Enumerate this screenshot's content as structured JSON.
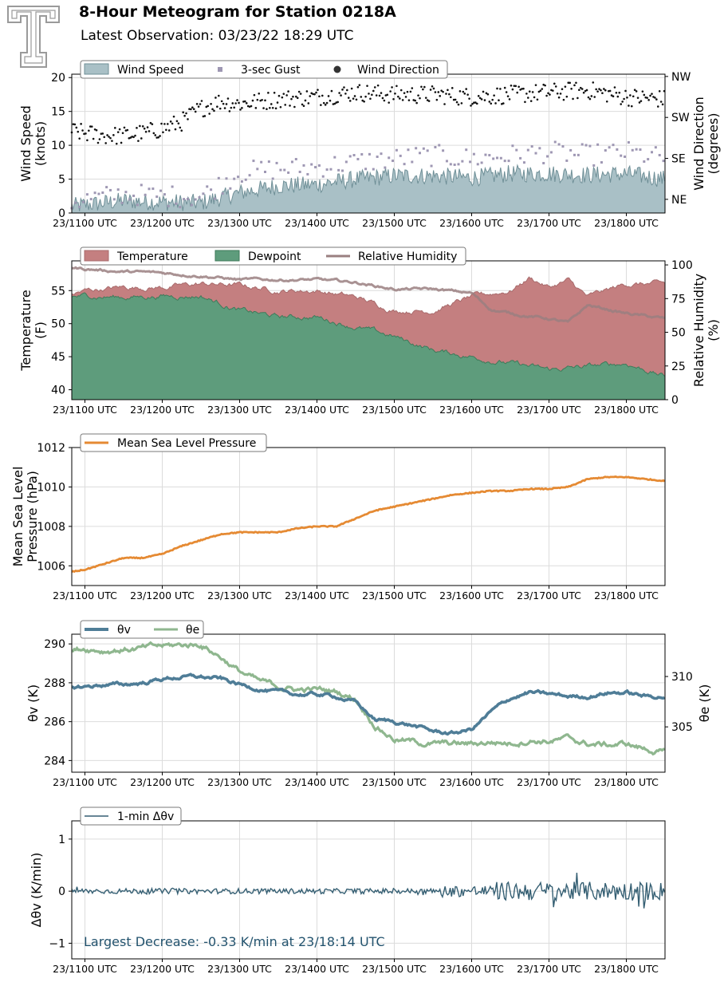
{
  "header": {
    "title": "8-Hour Meteogram for Station 0218A",
    "subtitle": "Latest Observation: 03/23/22 18:29 UTC"
  },
  "x_tick_labels": [
    "23/1100 UTC",
    "23/1200 UTC",
    "23/1300 UTC",
    "23/1400 UTC",
    "23/1500 UTC",
    "23/1600 UTC",
    "23/1700 UTC",
    "23/1800 UTC"
  ],
  "chart_data": [
    {
      "id": "wind",
      "type": "area",
      "ylabel": "Wind Speed\n(knots)",
      "ylabel_right": "Wind Direction\n(degrees)",
      "ylim": [
        0,
        20.5
      ],
      "yticks": [
        0,
        5,
        10,
        15,
        20
      ],
      "right_ticks": [
        "NE",
        "SE",
        "SW",
        "NW"
      ],
      "legend": [
        "Wind Speed",
        "3-sec Gust",
        "Wind Direction"
      ],
      "colors": {
        "speed_fill": "#a9c0c6",
        "speed_line": "#6f8f97",
        "gust": "#9e97b3",
        "direction": "#111111"
      },
      "xlim_hours": [
        10.83,
        18.5
      ],
      "series": [
        {
          "name": "Wind Speed",
          "x": [
            10.83,
            11.0,
            11.5,
            12.0,
            12.5,
            13.0,
            13.5,
            14.0,
            14.5,
            15.0,
            15.5,
            16.0,
            16.5,
            17.0,
            17.5,
            18.0,
            18.5
          ],
          "values": [
            1.0,
            1.2,
            1.8,
            1.6,
            1.5,
            3.0,
            4.0,
            4.2,
            5.0,
            5.5,
            5.5,
            5.2,
            5.8,
            5.8,
            5.6,
            5.8,
            5.0
          ]
        },
        {
          "name": "3-sec Gust",
          "x": [
            10.83,
            11.0,
            11.5,
            12.0,
            12.5,
            13.0,
            13.5,
            14.0,
            14.5,
            15.0,
            15.5,
            16.0,
            16.5,
            17.0,
            17.5,
            18.0,
            18.5
          ],
          "values": [
            1.6,
            2.0,
            2.8,
            2.5,
            2.4,
            6.0,
            6.5,
            6.8,
            7.5,
            8.0,
            8.5,
            8.0,
            8.5,
            9.0,
            8.5,
            9.0,
            8.0
          ]
        },
        {
          "name": "Wind Direction",
          "x": [
            10.83,
            11.0,
            11.25,
            11.5,
            11.75,
            12.0,
            12.25,
            12.5,
            12.75,
            13.0,
            13.5,
            14.0,
            14.5,
            15.0,
            15.5,
            16.0,
            16.5,
            17.0,
            17.5,
            18.0,
            18.5
          ],
          "values": [
            195,
            190,
            185,
            185,
            190,
            200,
            215,
            245,
            260,
            255,
            265,
            270,
            280,
            275,
            275,
            270,
            275,
            280,
            285,
            270,
            265
          ]
        }
      ]
    },
    {
      "id": "temp",
      "type": "area",
      "ylabel": "Temperature\n(F)",
      "ylabel_right": "Relative Humidity\n(%)",
      "ylim": [
        38.5,
        59.5
      ],
      "yticks": [
        40,
        45,
        50,
        55
      ],
      "ylim_right": [
        0,
        103
      ],
      "yticks_right": [
        0,
        25,
        50,
        75,
        100
      ],
      "legend": [
        "Temperature",
        "Dewpoint",
        "Relative Humidity"
      ],
      "colors": {
        "temperature": "#c47f80",
        "dewpoint": "#5e9c7c",
        "rh": "#9a7f80"
      },
      "xlim_hours": [
        10.83,
        18.5
      ],
      "series": [
        {
          "name": "Temperature",
          "x": [
            10.83,
            11.0,
            11.5,
            12.0,
            12.5,
            13.0,
            13.5,
            14.0,
            14.5,
            15.0,
            15.5,
            16.0,
            16.5,
            16.75,
            17.0,
            17.25,
            17.5,
            18.0,
            18.5
          ],
          "values": [
            54.5,
            55.0,
            55.5,
            55.5,
            56.0,
            55.8,
            55.0,
            55.0,
            54.0,
            52.0,
            52.0,
            54.0,
            55.0,
            57.0,
            55.5,
            56.5,
            54.0,
            56.0,
            56.0
          ]
        },
        {
          "name": "Dewpoint",
          "x": [
            10.83,
            11.0,
            11.5,
            12.0,
            12.5,
            13.0,
            13.5,
            14.0,
            14.5,
            15.0,
            15.5,
            16.0,
            16.5,
            17.0,
            17.5,
            18.0,
            18.5
          ],
          "values": [
            54.0,
            54.2,
            54.0,
            54.2,
            54.2,
            52.0,
            51.0,
            51.0,
            49.5,
            48.0,
            46.0,
            45.0,
            44.0,
            43.0,
            43.5,
            44.0,
            42.0
          ]
        },
        {
          "name": "Relative Humidity",
          "x": [
            10.83,
            11.0,
            11.5,
            12.0,
            12.5,
            13.0,
            13.5,
            14.0,
            14.5,
            15.0,
            15.5,
            16.0,
            16.25,
            16.5,
            17.0,
            17.25,
            17.5,
            18.0,
            18.5
          ],
          "values": [
            98,
            97,
            95,
            94,
            92,
            89,
            89,
            89,
            87,
            82,
            82,
            79,
            67,
            64,
            60,
            57,
            70,
            64,
            60
          ]
        }
      ]
    },
    {
      "id": "pressure",
      "type": "line",
      "ylabel": "Mean Sea Level\nPressure (hPa)",
      "ylim": [
        1005.0,
        1012.0
      ],
      "yticks": [
        1006,
        1008,
        1010,
        1012
      ],
      "legend": [
        "Mean Sea Level Pressure"
      ],
      "colors": {
        "mslp": "#e58a33"
      },
      "xlim_hours": [
        10.83,
        18.5
      ],
      "series": [
        {
          "name": "Mean Sea Level Pressure",
          "x": [
            10.83,
            11.0,
            11.25,
            11.5,
            11.75,
            12.0,
            12.25,
            12.5,
            12.75,
            13.0,
            13.25,
            13.5,
            13.75,
            14.0,
            14.25,
            14.5,
            14.75,
            15.0,
            15.25,
            15.5,
            15.75,
            16.0,
            16.25,
            16.5,
            16.75,
            17.0,
            17.25,
            17.5,
            17.75,
            18.0,
            18.25,
            18.5
          ],
          "values": [
            1005.7,
            1005.8,
            1006.1,
            1006.4,
            1006.4,
            1006.6,
            1007.0,
            1007.3,
            1007.6,
            1007.7,
            1007.7,
            1007.7,
            1007.9,
            1008.0,
            1008.0,
            1008.4,
            1008.8,
            1009.0,
            1009.2,
            1009.4,
            1009.6,
            1009.7,
            1009.8,
            1009.8,
            1009.9,
            1009.9,
            1010.0,
            1010.4,
            1010.5,
            1010.5,
            1010.4,
            1010.3
          ]
        }
      ]
    },
    {
      "id": "theta",
      "type": "line",
      "ylabel": "θv (K)",
      "ylabel_right": "θe (K)",
      "ylim": [
        283.4,
        290.5
      ],
      "yticks": [
        284,
        286,
        288,
        290
      ],
      "ylim_right": [
        300.5,
        314.2
      ],
      "yticks_right": [
        305,
        310
      ],
      "legend": [
        "θv",
        "θe"
      ],
      "colors": {
        "theta_v": "#4f7d97",
        "theta_e": "#8fb78f"
      },
      "xlim_hours": [
        10.83,
        18.5
      ],
      "series": [
        {
          "name": "θv",
          "x": [
            10.83,
            11.0,
            11.25,
            11.5,
            11.75,
            12.0,
            12.25,
            12.5,
            12.75,
            13.0,
            13.25,
            13.5,
            13.75,
            14.0,
            14.25,
            14.5,
            14.75,
            15.0,
            15.25,
            15.5,
            15.75,
            16.0,
            16.25,
            16.5,
            16.75,
            17.0,
            17.25,
            17.5,
            17.75,
            18.0,
            18.25,
            18.5
          ],
          "values": [
            287.8,
            287.8,
            287.9,
            287.9,
            288.0,
            288.2,
            288.3,
            288.3,
            288.2,
            287.9,
            287.7,
            287.5,
            287.4,
            287.4,
            287.3,
            287.0,
            286.1,
            286.0,
            285.8,
            285.5,
            285.4,
            285.6,
            286.5,
            287.2,
            287.5,
            287.4,
            287.3,
            287.3,
            287.5,
            287.5,
            287.3,
            287.3
          ]
        },
        {
          "name": "θe",
          "x": [
            10.83,
            11.0,
            11.25,
            11.5,
            11.75,
            12.0,
            12.25,
            12.5,
            12.75,
            13.0,
            13.25,
            13.5,
            13.75,
            14.0,
            14.25,
            14.5,
            14.75,
            15.0,
            15.25,
            15.5,
            15.75,
            16.0,
            16.25,
            16.5,
            16.75,
            17.0,
            17.25,
            17.5,
            17.75,
            18.0,
            18.25,
            18.5
          ],
          "values": [
            312.5,
            312.8,
            312.6,
            312.7,
            312.8,
            313.0,
            313.1,
            313.2,
            312.0,
            310.5,
            309.5,
            309.0,
            308.7,
            308.7,
            308.5,
            307.8,
            305.2,
            303.8,
            303.5,
            303.3,
            303.3,
            303.3,
            303.5,
            303.4,
            303.7,
            303.6,
            303.8,
            303.3,
            303.2,
            303.3,
            302.8,
            302.4
          ]
        }
      ]
    },
    {
      "id": "dtheta",
      "type": "line",
      "ylabel": "Δθv (K/min)",
      "ylim": [
        -1.3,
        1.35
      ],
      "yticks": [
        -1,
        0,
        1
      ],
      "legend": [
        "1-min Δθv"
      ],
      "colors": {
        "dtheta": "#355f73"
      },
      "xlim_hours": [
        10.83,
        18.5
      ],
      "annotation": "Largest Decrease: -0.33 K/min at 23/18:14 UTC",
      "series": [
        {
          "name": "1-min Δθv",
          "x": [
            10.83,
            11.0,
            12.0,
            13.0,
            14.0,
            15.0,
            16.0,
            16.5,
            17.0,
            17.5,
            18.0,
            18.23,
            18.5
          ],
          "values": [
            0.0,
            0.0,
            0.0,
            0.0,
            0.0,
            0.0,
            0.0,
            0.05,
            0.0,
            0.0,
            0.0,
            -0.33,
            0.0
          ]
        }
      ]
    }
  ]
}
